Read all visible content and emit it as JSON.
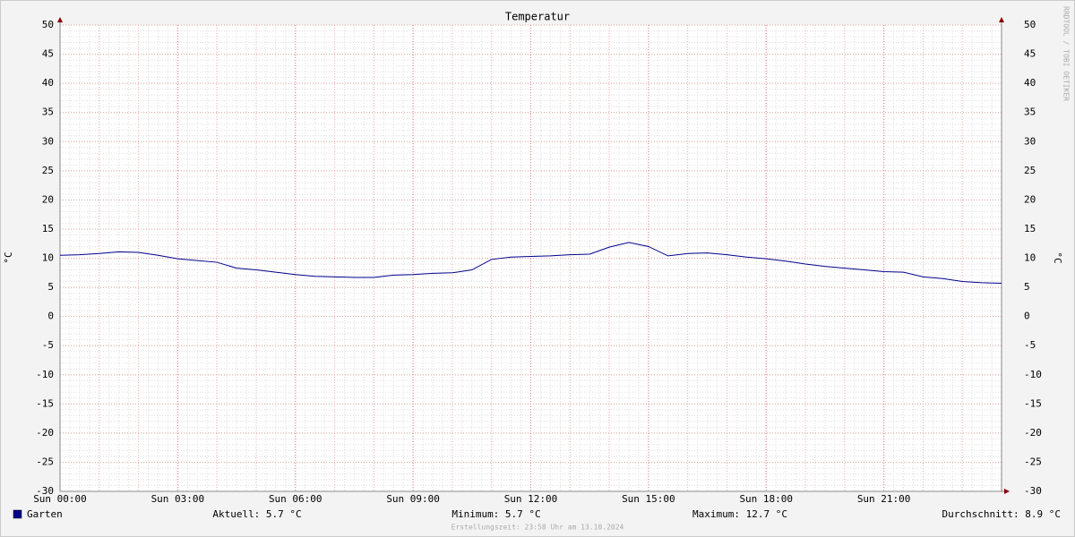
{
  "chart_data": {
    "type": "line",
    "title": "Temperatur",
    "y_label": "°C",
    "watermark": "RRDTOOL / TOBI OETIKER",
    "x": [
      0,
      0.5,
      1,
      1.5,
      2,
      2.5,
      3,
      3.5,
      4,
      4.5,
      5,
      5.5,
      6,
      6.5,
      7,
      7.5,
      8,
      8.5,
      9,
      9.5,
      10,
      10.5,
      11,
      11.5,
      12,
      12.5,
      13,
      13.5,
      14,
      14.5,
      15,
      15.5,
      16,
      16.5,
      17,
      17.5,
      18,
      18.5,
      19,
      19.5,
      20,
      20.5,
      21,
      21.5,
      22,
      22.5,
      23,
      23.5,
      24
    ],
    "series": [
      {
        "name": "Garten",
        "color": "#00008b",
        "values": [
          10.5,
          10.6,
          10.8,
          11.1,
          11.0,
          10.5,
          9.9,
          9.6,
          9.3,
          8.3,
          8.0,
          7.6,
          7.2,
          6.9,
          6.8,
          6.7,
          6.7,
          7.1,
          7.2,
          7.4,
          7.5,
          8.0,
          9.8,
          10.2,
          10.3,
          10.4,
          10.6,
          10.7,
          11.9,
          12.7,
          12.0,
          10.4,
          10.8,
          10.9,
          10.6,
          10.2,
          9.9,
          9.5,
          9.0,
          8.6,
          8.3,
          8.0,
          7.7,
          7.6,
          6.8,
          6.5,
          6.0,
          5.8,
          5.7
        ]
      }
    ],
    "xlim": [
      0,
      24
    ],
    "xticks": [
      {
        "value": 0,
        "label": "Sun 00:00"
      },
      {
        "value": 3,
        "label": "Sun 03:00"
      },
      {
        "value": 6,
        "label": "Sun 06:00"
      },
      {
        "value": 9,
        "label": "Sun 09:00"
      },
      {
        "value": 12,
        "label": "Sun 12:00"
      },
      {
        "value": 15,
        "label": "Sun 15:00"
      },
      {
        "value": 18,
        "label": "Sun 18:00"
      },
      {
        "value": 21,
        "label": "Sun 21:00"
      }
    ],
    "ylim": [
      -30,
      50
    ],
    "yticks": [
      -30,
      -25,
      -20,
      -15,
      -10,
      -5,
      0,
      5,
      10,
      15,
      20,
      25,
      30,
      35,
      40,
      45,
      50
    ],
    "grid": true,
    "stats": [
      "Aktuell: 5.7 °C",
      "Minimum: 5.7 °C",
      "Maximum: 12.7 °C",
      "Durchschnitt: 8.9 °C"
    ],
    "footer": "Erstellungszeit: 23:58 Uhr am 13.10.2024"
  }
}
